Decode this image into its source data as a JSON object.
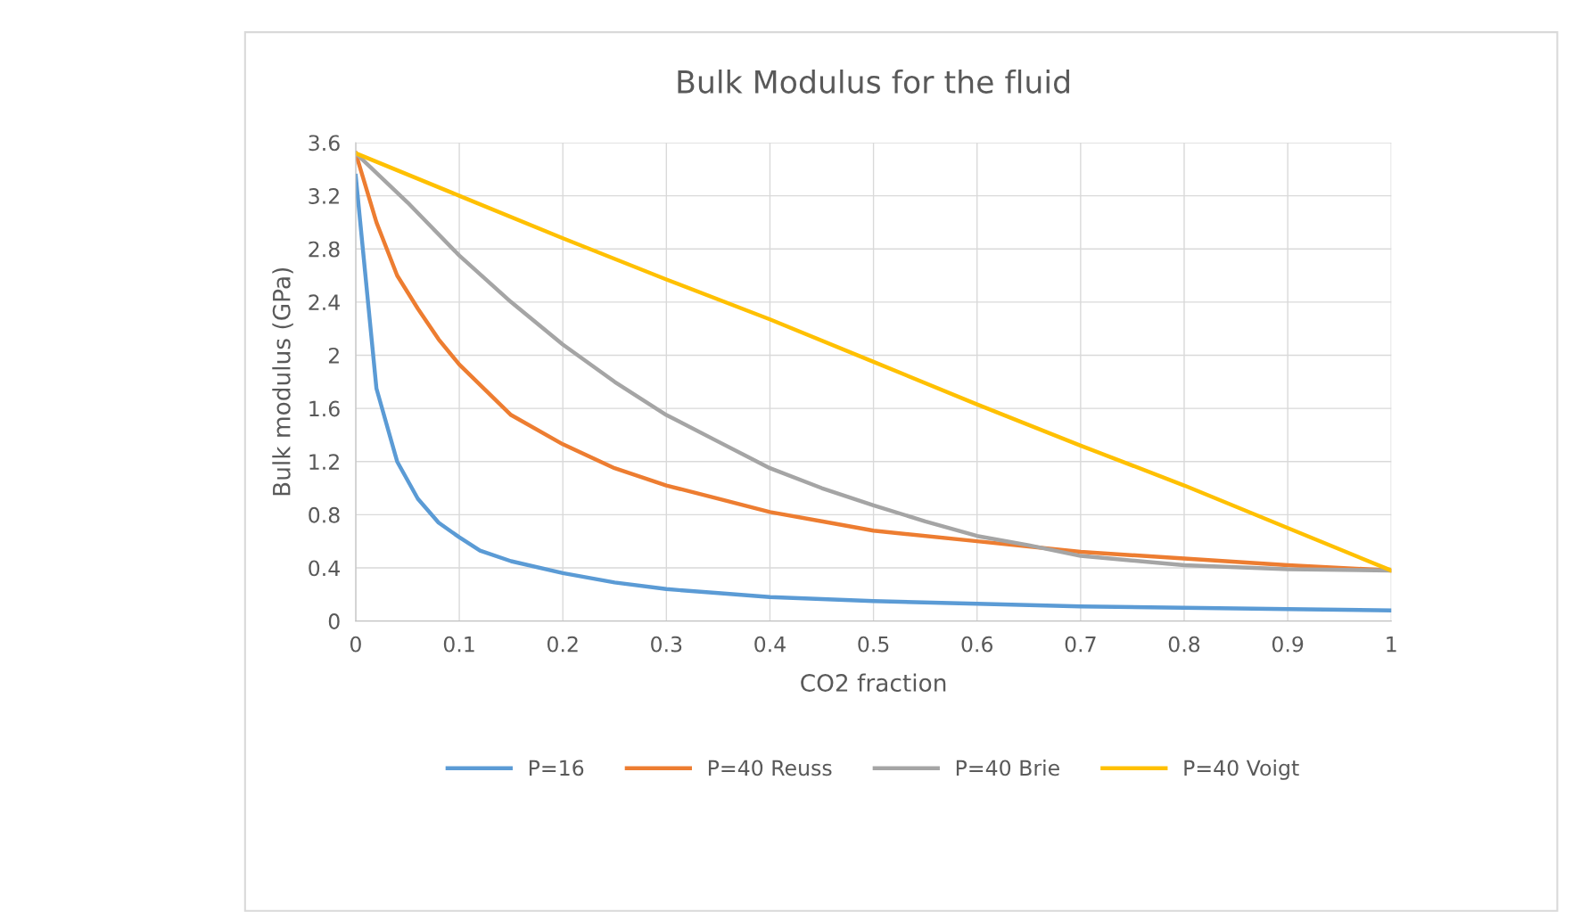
{
  "chart_data": {
    "type": "line",
    "title": "Bulk Modulus for the fluid",
    "xlabel": "CO2 fraction",
    "ylabel": "Bulk modulus (GPa)",
    "xlim": [
      0,
      1
    ],
    "xticks": [
      0,
      0.1,
      0.2,
      0.3,
      0.4,
      0.5,
      0.6,
      0.7,
      0.8,
      0.9,
      1
    ],
    "ylim": [
      0,
      3.6
    ],
    "yticks": [
      0,
      0.4,
      0.8,
      1.2,
      1.6,
      2,
      2.4,
      2.8,
      3.2,
      3.6
    ],
    "grid": true,
    "legend": "bottom",
    "marker": "none",
    "line_style": "solid",
    "series": [
      {
        "name": "P=16",
        "color": "#5b9bd5",
        "x": [
          0,
          0.02,
          0.04,
          0.06,
          0.08,
          0.1,
          0.12,
          0.15,
          0.2,
          0.25,
          0.3,
          0.35,
          0.4,
          0.5,
          0.6,
          0.7,
          0.8,
          0.9,
          1
        ],
        "values": [
          3.35,
          1.75,
          1.2,
          0.92,
          0.74,
          0.63,
          0.53,
          0.45,
          0.36,
          0.29,
          0.24,
          0.21,
          0.18,
          0.15,
          0.13,
          0.11,
          0.1,
          0.09,
          0.08
        ]
      },
      {
        "name": "P=40 Reuss",
        "color": "#ed7d31",
        "x": [
          0,
          0.02,
          0.04,
          0.06,
          0.08,
          0.1,
          0.15,
          0.2,
          0.25,
          0.3,
          0.35,
          0.4,
          0.45,
          0.5,
          0.6,
          0.7,
          0.8,
          0.9,
          1
        ],
        "values": [
          3.52,
          3.0,
          2.6,
          2.35,
          2.12,
          1.93,
          1.55,
          1.33,
          1.15,
          1.02,
          0.92,
          0.82,
          0.75,
          0.68,
          0.6,
          0.52,
          0.47,
          0.42,
          0.38
        ]
      },
      {
        "name": "P=40 Brie",
        "color": "#a5a5a5",
        "x": [
          0,
          0.05,
          0.1,
          0.15,
          0.2,
          0.25,
          0.3,
          0.35,
          0.4,
          0.45,
          0.5,
          0.55,
          0.6,
          0.65,
          0.7,
          0.8,
          0.9,
          1
        ],
        "values": [
          3.52,
          3.15,
          2.75,
          2.4,
          2.08,
          1.8,
          1.55,
          1.35,
          1.15,
          1.0,
          0.87,
          0.75,
          0.64,
          0.57,
          0.49,
          0.42,
          0.39,
          0.38
        ]
      },
      {
        "name": "P=40 Voigt",
        "color": "#ffc000",
        "x": [
          0,
          0.1,
          0.2,
          0.3,
          0.4,
          0.5,
          0.6,
          0.7,
          0.8,
          0.9,
          1
        ],
        "values": [
          3.52,
          3.2,
          2.88,
          2.57,
          2.27,
          1.95,
          1.63,
          1.32,
          1.02,
          0.7,
          0.38
        ]
      }
    ]
  }
}
